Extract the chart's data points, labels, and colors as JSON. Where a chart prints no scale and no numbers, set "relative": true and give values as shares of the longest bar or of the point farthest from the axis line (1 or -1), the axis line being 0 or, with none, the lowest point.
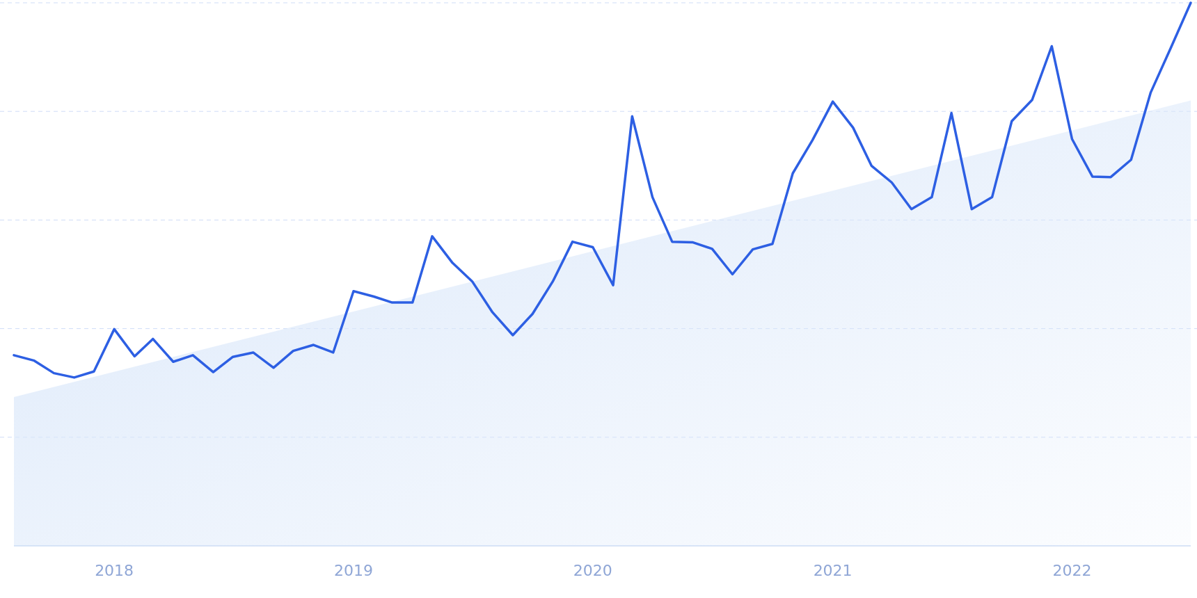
{
  "chart_data": {
    "type": "line",
    "relative": true,
    "grid": true,
    "xlim": [
      "2017-08",
      "2022-07"
    ],
    "xticks": [
      "2018",
      "2019",
      "2020",
      "2021",
      "2022"
    ],
    "series": [
      {
        "type": "area",
        "color": "#dbe8fa",
        "x": [
          "2017-08",
          "2022-07"
        ],
        "values": [
          0.274,
          0.82
        ]
      },
      {
        "color": "#2d5fe3",
        "x": [
          "2017-08",
          "2017-09",
          "2017-10",
          "2017-11",
          "2017-12",
          "2018-01",
          "2018-02",
          "2018-03",
          "2018-04",
          "2018-05",
          "2018-06",
          "2018-07",
          "2018-08",
          "2018-09",
          "2018-10",
          "2018-11",
          "2018-12",
          "2019-01",
          "2019-02",
          "2019-03",
          "2019-04",
          "2019-05",
          "2019-06",
          "2019-07",
          "2019-08",
          "2019-09",
          "2019-10",
          "2019-11",
          "2019-12",
          "2020-01",
          "2020-02",
          "2020-03",
          "2020-04",
          "2020-05",
          "2020-06",
          "2020-07",
          "2020-08",
          "2020-09",
          "2020-10",
          "2020-11",
          "2020-12",
          "2021-01",
          "2021-02",
          "2021-03",
          "2021-04",
          "2021-05",
          "2021-06",
          "2021-07",
          "2021-08",
          "2021-09",
          "2021-10",
          "2021-11",
          "2021-12",
          "2022-01",
          "2022-02",
          "2022-03",
          "2022-04",
          "2022-05",
          "2022-06",
          "2022-07"
        ],
        "values": [
          0.351,
          0.341,
          0.318,
          0.31,
          0.321,
          0.399,
          0.349,
          0.381,
          0.339,
          0.351,
          0.32,
          0.348,
          0.356,
          0.328,
          0.359,
          0.37,
          0.356,
          0.469,
          0.459,
          0.448,
          0.448,
          0.57,
          0.521,
          0.487,
          0.43,
          0.388,
          0.427,
          0.487,
          0.56,
          0.55,
          0.48,
          0.791,
          0.642,
          0.56,
          0.559,
          0.547,
          0.5,
          0.546,
          0.556,
          0.686,
          0.747,
          0.818,
          0.77,
          0.7,
          0.669,
          0.62,
          0.642,
          0.797,
          0.62,
          0.642,
          0.782,
          0.821,
          0.92,
          0.749,
          0.68,
          0.679,
          0.711,
          0.835,
          0.918,
          1.0
        ]
      }
    ]
  }
}
